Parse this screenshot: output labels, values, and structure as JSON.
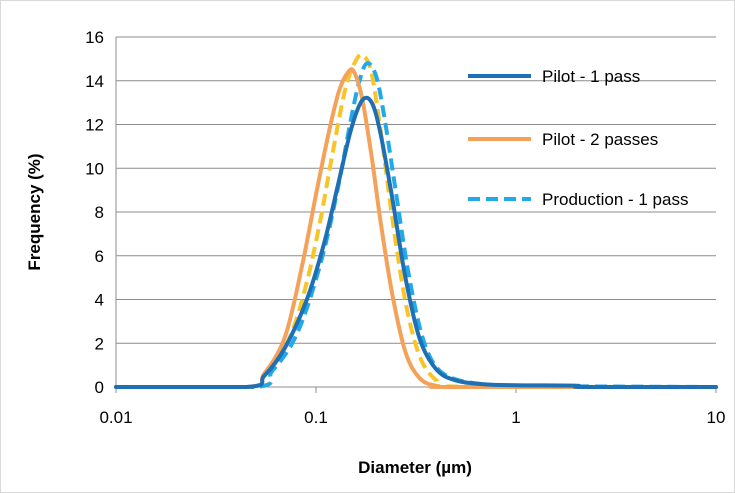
{
  "chart_data": {
    "type": "line",
    "xscale": "log",
    "xlim": [
      0.01,
      10
    ],
    "ylim": [
      0,
      16
    ],
    "xlabel": "Diameter (µm)",
    "ylabel": "Frequency (%)",
    "x_ticks": [
      0.01,
      0.1,
      1,
      10
    ],
    "x_tick_labels": [
      "0.01",
      "0.1",
      "1",
      "10"
    ],
    "y_ticks": [
      0,
      2,
      4,
      6,
      8,
      10,
      12,
      14,
      16
    ],
    "y_tick_labels": [
      "0",
      "2",
      "4",
      "6",
      "8",
      "10",
      "12",
      "14",
      "16"
    ],
    "grid": "horizontal",
    "legend_position": "top-right",
    "series": [
      {
        "name": "Pilot - 1 pass",
        "color": "#1f6fb5",
        "style": "solid",
        "x": [
          0.01,
          0.045,
          0.055,
          0.07,
          0.09,
          0.11,
          0.13,
          0.15,
          0.17,
          0.19,
          0.21,
          0.24,
          0.28,
          0.33,
          0.4,
          0.5,
          0.7,
          1.0,
          2.0,
          2.2,
          10
        ],
        "y": [
          0,
          0,
          0.5,
          1.8,
          4.0,
          6.6,
          9.4,
          11.8,
          13.1,
          13.0,
          11.6,
          8.7,
          5.0,
          2.2,
          0.8,
          0.3,
          0.12,
          0.08,
          0.06,
          0,
          0
        ]
      },
      {
        "name": "Pilot - 2 passes",
        "color": "#f4a259",
        "style": "solid",
        "x": [
          0.01,
          0.045,
          0.055,
          0.07,
          0.085,
          0.1,
          0.115,
          0.13,
          0.145,
          0.155,
          0.17,
          0.19,
          0.21,
          0.24,
          0.28,
          0.33,
          0.4,
          0.5,
          10
        ],
        "y": [
          0,
          0,
          0.6,
          2.3,
          5.5,
          8.8,
          11.5,
          13.5,
          14.4,
          14.4,
          13.2,
          10.5,
          7.6,
          4.3,
          1.6,
          0.4,
          0.05,
          0,
          0
        ]
      },
      {
        "name": "Production - 1 pass",
        "color": "#22a9e8",
        "style": "dashed",
        "x": [
          0.01,
          0.05,
          0.06,
          0.075,
          0.09,
          0.11,
          0.13,
          0.15,
          0.165,
          0.18,
          0.2,
          0.22,
          0.25,
          0.29,
          0.34,
          0.4,
          0.5,
          0.7,
          1.0,
          2.0,
          10
        ],
        "y": [
          0,
          0,
          0.7,
          1.9,
          3.6,
          6.3,
          9.3,
          12.3,
          14.0,
          14.8,
          14.2,
          12.3,
          9.0,
          5.2,
          2.3,
          0.9,
          0.35,
          0.12,
          0.05,
          0.03,
          0
        ]
      },
      {
        "name": "",
        "color": "#f7c42a",
        "style": "dashed",
        "x": [
          0.01,
          0.05,
          0.06,
          0.075,
          0.09,
          0.105,
          0.12,
          0.14,
          0.16,
          0.175,
          0.19,
          0.21,
          0.24,
          0.28,
          0.33,
          0.4,
          0.5,
          10
        ],
        "y": [
          0,
          0,
          0.8,
          2.4,
          4.8,
          7.6,
          10.5,
          13.6,
          15.0,
          15.1,
          14.3,
          11.8,
          7.8,
          3.9,
          1.4,
          0.3,
          0.02,
          0
        ]
      }
    ]
  }
}
